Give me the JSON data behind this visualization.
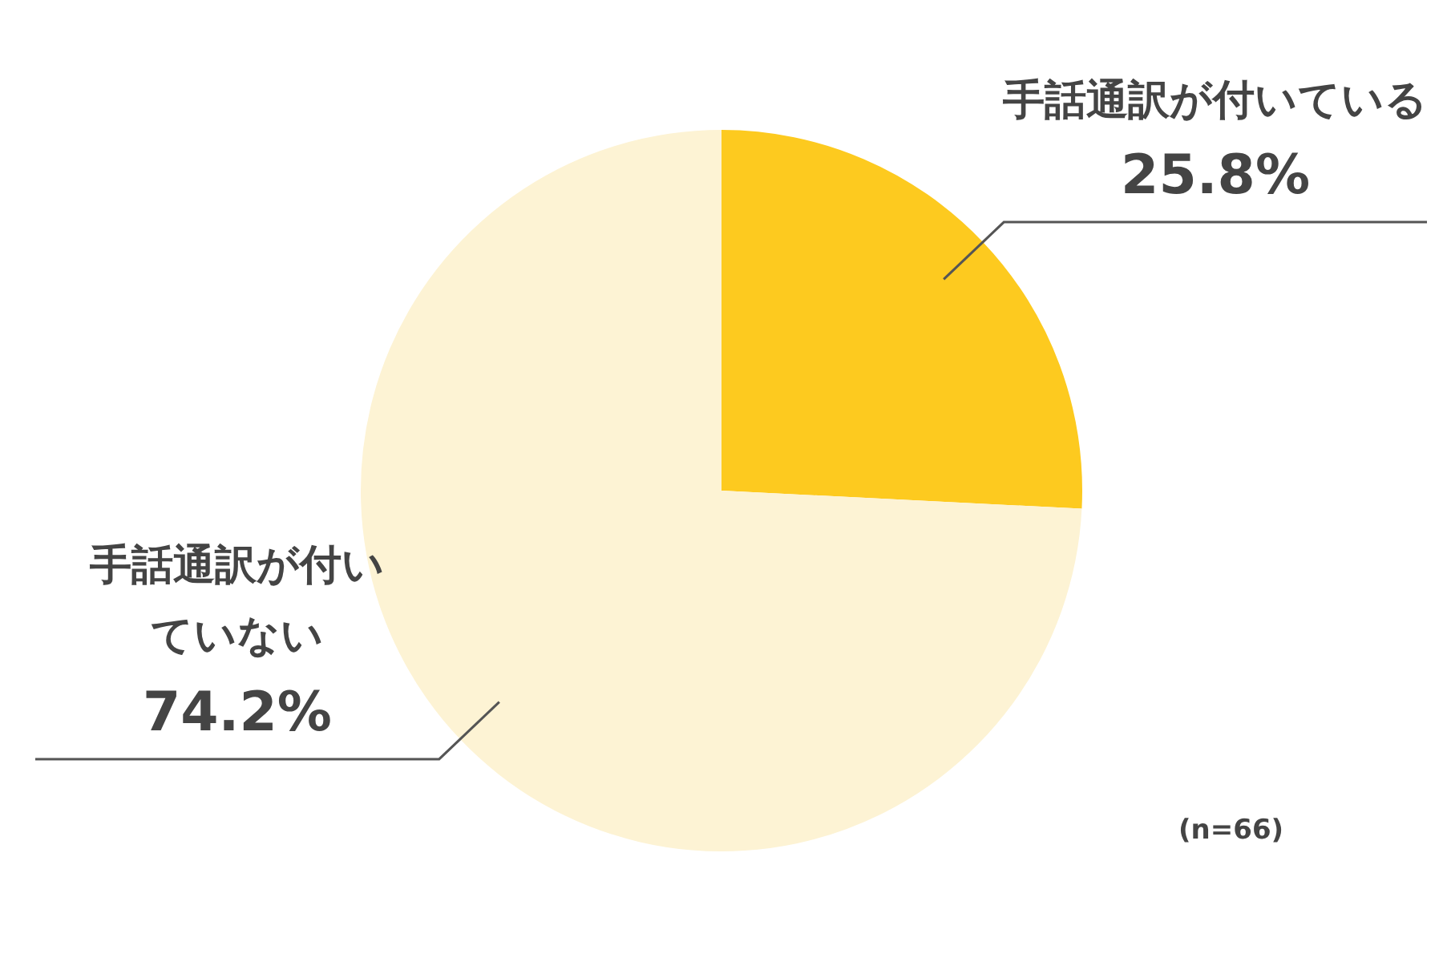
{
  "chart_data": {
    "type": "pie",
    "categories": [
      "手話通訳が付いている",
      "手話通訳が付いていない"
    ],
    "values": [
      25.8,
      74.2
    ],
    "colors": [
      "#fdca1f",
      "#fdf3d4"
    ],
    "value_labels": [
      "25.8%",
      "74.2%"
    ],
    "annotations": [
      "(n=66)"
    ]
  }
}
